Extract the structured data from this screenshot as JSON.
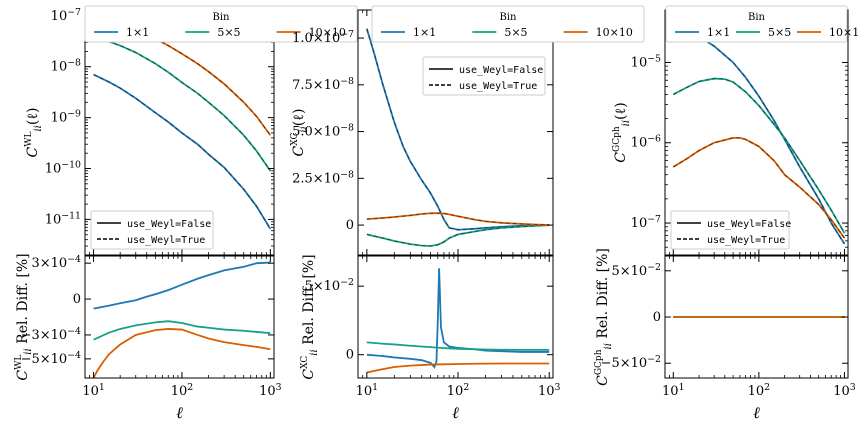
{
  "figure": {
    "legend_title": "Bin",
    "xlabel": "ℓ",
    "colors": {
      "1x1": "#1f77b4",
      "5x5": "#17a085",
      "10x10": "#d95f02"
    }
  },
  "chart_data": [
    {
      "type": "line",
      "panel": "WL",
      "xscale": "log",
      "xlim": [
        8,
        1100
      ],
      "xticks": [
        {
          "v": 10,
          "label": "10",
          "sup": "1"
        },
        {
          "v": 100,
          "label": "10",
          "sup": "2"
        },
        {
          "v": 1000,
          "label": "10",
          "sup": "3"
        }
      ],
      "bin_legend": {
        "title": "Bin",
        "entries": [
          "1×1",
          "5×5",
          "10×10"
        ],
        "placement": "top"
      },
      "style_legend": {
        "entries": [
          "use_Weyl=False",
          "use_Weyl=True"
        ],
        "placement": "lower-left"
      },
      "top": {
        "ylabel": {
          "base": "C",
          "sup": "WL",
          "sub": "ii",
          "tail": "(ℓ)"
        },
        "yscale": "log",
        "ylim": [
          2e-12,
          1.3e-07
        ],
        "yticks": [
          {
            "v": 1e-07,
            "label": "10",
            "sup": "−7"
          },
          {
            "v": 1e-08,
            "label": "10",
            "sup": "−8"
          },
          {
            "v": 1e-09,
            "label": "10",
            "sup": "−9"
          },
          {
            "v": 1e-10,
            "label": "10",
            "sup": "−10"
          },
          {
            "v": 1e-11,
            "label": "10",
            "sup": "−11"
          }
        ],
        "series": [
          {
            "name": "1×1",
            "x": [
              10,
              15,
              20,
              30,
              50,
              70,
              100,
              150,
              200,
              300,
              500,
              700,
              1000
            ],
            "y": [
              7e-09,
              5e-09,
              3.8e-09,
              2.4e-09,
              1.25e-09,
              8.2e-10,
              5e-10,
              3e-10,
              1.9e-10,
              1.05e-10,
              3.9e-11,
              1.8e-11,
              6.5e-12
            ]
          },
          {
            "name": "5×5",
            "x": [
              10,
              15,
              20,
              30,
              50,
              70,
              100,
              150,
              200,
              300,
              500,
              700,
              1000
            ],
            "y": [
              3.5e-08,
              3.1e-08,
              2.6e-08,
              1.9e-08,
              1.15e-08,
              7.8e-09,
              4.9e-09,
              3e-09,
              2e-09,
              1.1e-09,
              4.5e-10,
              2.2e-10,
              9e-11
            ]
          },
          {
            "name": "10×10",
            "x": [
              10,
              15,
              20,
              30,
              50,
              70,
              100,
              150,
              200,
              300,
              500,
              700,
              1000
            ],
            "y": [
              6.5e-08,
              6.4e-08,
              6e-08,
              5e-08,
              3.5e-08,
              2.6e-08,
              1.8e-08,
              1.15e-08,
              8e-09,
              4.6e-09,
              2e-09,
              1.05e-09,
              4.5e-10
            ]
          }
        ]
      },
      "bottom": {
        "ylabel": {
          "base": "C",
          "sup": "WL",
          "sub": "ii",
          "tail": " Rel. Diff. [%]"
        },
        "yscale": "linear",
        "ylim": [
          -0.00066,
          0.00036
        ],
        "yticks": [
          {
            "v": 0.0003,
            "label": "3×10",
            "sup": "−4"
          },
          {
            "v": 0,
            "label": "0",
            "sup": ""
          },
          {
            "v": -0.0003,
            "label": "−3×10",
            "sup": "−4"
          },
          {
            "v": -0.0005,
            "label": "−5×10",
            "sup": "−4"
          }
        ],
        "series": [
          {
            "name": "1×1",
            "x": [
              10,
              15,
              20,
              30,
              40,
              50,
              70,
              100,
              150,
              200,
              300,
              500,
              700,
              1000
            ],
            "y": [
              -8e-05,
              -5.5e-05,
              -3.5e-05,
              -1e-05,
              2e-05,
              4e-05,
              7.5e-05,
              0.00012,
              0.00017,
              0.0002,
              0.00024,
              0.00027,
              0.0003,
              0.000305
            ]
          },
          {
            "name": "5×5",
            "x": [
              10,
              15,
              20,
              30,
              50,
              70,
              100,
              150,
              200,
              300,
              500,
              700,
              1000
            ],
            "y": [
              -0.00034,
              -0.00028,
              -0.00025,
              -0.00022,
              -0.000195,
              -0.000185,
              -0.0002,
              -0.00023,
              -0.00024,
              -0.000255,
              -0.000265,
              -0.000275,
              -0.000285
            ]
          },
          {
            "name": "10×10",
            "x": [
              10,
              11,
              13,
              15,
              20,
              30,
              50,
              70,
              100,
              150,
              200,
              300,
              500,
              700,
              1000
            ],
            "y": [
              -0.00066,
              -0.0006,
              -0.00052,
              -0.00046,
              -0.00038,
              -0.0003,
              -0.00026,
              -0.00025,
              -0.000255,
              -0.0003,
              -0.00033,
              -0.00036,
              -0.000385,
              -0.0004,
              -0.00042
            ]
          }
        ]
      }
    },
    {
      "type": "line",
      "panel": "XC",
      "xscale": "log",
      "xlim": [
        8,
        1100
      ],
      "xticks": [
        {
          "v": 10,
          "label": "10",
          "sup": "1"
        },
        {
          "v": 100,
          "label": "10",
          "sup": "2"
        },
        {
          "v": 1000,
          "label": "10",
          "sup": "3"
        }
      ],
      "bin_legend": {
        "title": "Bin",
        "entries": [
          "1×1",
          "5×5",
          "10×10"
        ],
        "placement": "top"
      },
      "style_legend": {
        "entries": [
          "use_Weyl=False",
          "use_Weyl=True"
        ],
        "placement": "upper-right"
      },
      "top": {
        "ylabel": {
          "base": "C",
          "sup": "XC",
          "sub": "ii",
          "tail": "(ℓ)"
        },
        "yscale": "linear",
        "ylim": [
          -1.6e-08,
          1.15e-07
        ],
        "yticks": [
          {
            "v": 1e-07,
            "label": "1.0×10",
            "sup": "−7"
          },
          {
            "v": 7.5e-08,
            "label": "7.5×10",
            "sup": "−8"
          },
          {
            "v": 5e-08,
            "label": "5.0×10",
            "sup": "−8"
          },
          {
            "v": 2.5e-08,
            "label": "2.5×10",
            "sup": "−8"
          },
          {
            "v": 0,
            "label": "0",
            "sup": ""
          }
        ],
        "series": [
          {
            "name": "1×1",
            "x": [
              10,
              12,
              15,
              20,
              25,
              30,
              40,
              50,
              60,
              70,
              80,
              100,
              150,
              200,
              300,
              500,
              700,
              1000
            ],
            "y": [
              1.05e-07,
              9.2e-08,
              7.5e-08,
              5.5e-08,
              4.2e-08,
              3.4e-08,
              2.4e-08,
              1.7e-08,
              1e-08,
              3e-09,
              -1.5e-09,
              -2.5e-09,
              -2e-09,
              -1.5e-09,
              -9e-10,
              -4e-10,
              -2e-10,
              0
            ]
          },
          {
            "name": "5×5",
            "x": [
              10,
              15,
              20,
              30,
              40,
              50,
              60,
              70,
              80,
              100,
              150,
              200,
              300,
              500,
              700,
              1000
            ],
            "y": [
              -5e-09,
              -7e-09,
              -8.5e-09,
              -1.02e-08,
              -1.1e-08,
              -1.12e-08,
              -1.05e-08,
              -9e-09,
              -7e-09,
              -5e-09,
              -3.5e-09,
              -2.5e-09,
              -1.5e-09,
              -8e-10,
              -4e-10,
              0
            ]
          },
          {
            "name": "10×10",
            "x": [
              10,
              15,
              20,
              30,
              40,
              50,
              60,
              70,
              80,
              100,
              150,
              200,
              300,
              500,
              700,
              1000
            ],
            "y": [
              3.2e-09,
              3.8e-09,
              4.3e-09,
              5.2e-09,
              5.9e-09,
              6.3e-09,
              6.4e-09,
              6.2e-09,
              5.7e-09,
              4.7e-09,
              3e-09,
              2e-09,
              1.2e-09,
              6e-10,
              3e-10,
              0
            ]
          }
        ]
      },
      "bottom": {
        "ylabel": {
          "base": "C",
          "sup": "XC",
          "sub": "ii",
          "tail": " Rel. Diff. [%]"
        },
        "yscale": "linear",
        "ylim": [
          -0.017,
          0.072
        ],
        "yticks": [
          {
            "v": 0.05,
            "label": "5×10",
            "sup": "−2"
          },
          {
            "v": 0,
            "label": "0",
            "sup": ""
          }
        ],
        "series": [
          {
            "name": "1×1",
            "x": [
              10,
              15,
              20,
              30,
              40,
              50,
              55,
              58,
              60,
              62,
              65,
              70,
              80,
              100,
              150,
              200,
              300,
              500,
              700,
              1000
            ],
            "y": [
              0.0,
              -0.001,
              -0.002,
              -0.003,
              -0.004,
              -0.006,
              -0.009,
              -0.005,
              0.025,
              0.063,
              0.02,
              0.009,
              0.006,
              0.005,
              0.004,
              0.003,
              0.0025,
              0.002,
              0.002,
              0.002
            ]
          },
          {
            "name": "5×5",
            "x": [
              10,
              15,
              20,
              30,
              50,
              70,
              100,
              150,
              200,
              300,
              500,
              700,
              1000
            ],
            "y": [
              0.009,
              0.008,
              0.0075,
              0.0065,
              0.0055,
              0.0048,
              0.0043,
              0.004,
              0.0038,
              0.0036,
              0.0035,
              0.0035,
              0.0035
            ]
          },
          {
            "name": "10×10",
            "x": [
              10,
              15,
              20,
              30,
              50,
              70,
              100,
              150,
              200,
              300,
              500,
              700,
              1000
            ],
            "y": [
              -0.013,
              -0.0105,
              -0.009,
              -0.008,
              -0.0072,
              -0.007,
              -0.0068,
              -0.0066,
              -0.0065,
              -0.0064,
              -0.0064,
              -0.0064,
              -0.0064
            ]
          }
        ]
      }
    },
    {
      "type": "line",
      "panel": "GCph",
      "xscale": "log",
      "xlim": [
        8,
        1100
      ],
      "xticks": [
        {
          "v": 10,
          "label": "10",
          "sup": "1"
        },
        {
          "v": 100,
          "label": "10",
          "sup": "2"
        },
        {
          "v": 1000,
          "label": "10",
          "sup": "3"
        }
      ],
      "bin_legend": {
        "title": "Bin",
        "entries": [
          "1×1",
          "5×5",
          "10×10"
        ],
        "placement": "top"
      },
      "style_legend": {
        "entries": [
          "use_Weyl=False",
          "use_Weyl=True"
        ],
        "placement": "lower-left"
      },
      "top": {
        "ylabel": {
          "base": "C",
          "sup": "GCph",
          "sub": "ii",
          "tail": "(ℓ)"
        },
        "yscale": "log",
        "ylim": [
          4e-08,
          4.5e-05
        ],
        "yticks": [
          {
            "v": 1e-05,
            "label": "10",
            "sup": "−5"
          },
          {
            "v": 1e-06,
            "label": "10",
            "sup": "−6"
          },
          {
            "v": 1e-07,
            "label": "10",
            "sup": "−7"
          }
        ],
        "series": [
          {
            "name": "1×1",
            "x": [
              10,
              12,
              15,
              20,
              30,
              50,
              70,
              100,
              150,
              200,
              300,
              500,
              700,
              1000
            ],
            "y": [
              2.5e-05,
              2.5e-05,
              2.4e-05,
              2.1e-05,
              1.6e-05,
              1e-05,
              6.5e-06,
              3.8e-06,
              1.9e-06,
              1.1e-06,
              5e-07,
              2e-07,
              1e-07,
              5.5e-08
            ]
          },
          {
            "name": "5×5",
            "x": [
              10,
              15,
              20,
              30,
              40,
              50,
              70,
              100,
              150,
              200,
              300,
              500,
              700,
              1000
            ],
            "y": [
              4e-06,
              5e-06,
              5.8e-06,
              6.3e-06,
              6.2e-06,
              5.7e-06,
              4.3e-06,
              2.9e-06,
              1.7e-06,
              1.15e-06,
              6e-07,
              2.6e-07,
              1.45e-07,
              7.5e-08
            ]
          },
          {
            "name": "10×10",
            "x": [
              10,
              15,
              20,
              30,
              50,
              60,
              70,
              100,
              150,
              200,
              300,
              500,
              700,
              1000
            ],
            "y": [
              5e-07,
              6.5e-07,
              8e-07,
              1e-06,
              1.15e-06,
              1.15e-06,
              1.1e-06,
              9e-07,
              6e-07,
              4e-07,
              2.8e-07,
              1.7e-07,
              1.1e-07,
              6.5e-08
            ]
          }
        ]
      },
      "bottom": {
        "ylabel": {
          "base": "C",
          "sup": "GCph",
          "sub": "ii",
          "tail": " Rel. Diff. [%]"
        },
        "yscale": "linear",
        "ylim": [
          -0.066,
          0.066
        ],
        "yticks": [
          {
            "v": 0.05,
            "label": "5×10",
            "sup": "−2"
          },
          {
            "v": 0,
            "label": "0",
            "sup": ""
          },
          {
            "v": -0.05,
            "label": "−5×10",
            "sup": "−2"
          }
        ],
        "series": [
          {
            "name": "1×1",
            "x": [
              10,
              1000
            ],
            "y": [
              0,
              0
            ]
          },
          {
            "name": "5×5",
            "x": [
              10,
              1000
            ],
            "y": [
              0,
              0
            ]
          },
          {
            "name": "10×10",
            "x": [
              10,
              1000
            ],
            "y": [
              0,
              0
            ]
          }
        ]
      }
    }
  ]
}
